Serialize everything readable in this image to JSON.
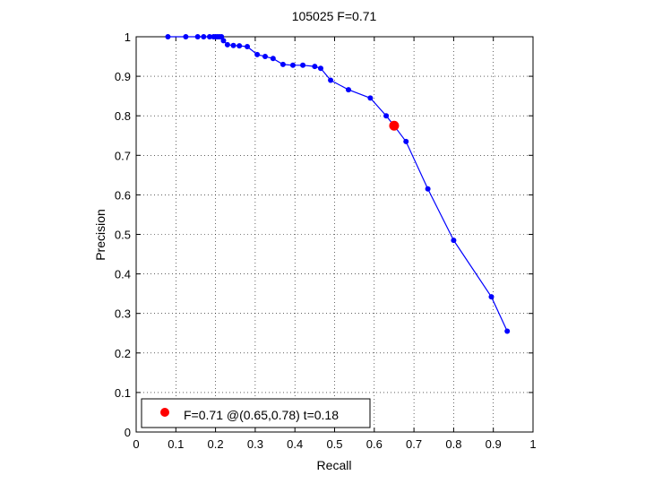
{
  "chart_data": {
    "type": "line",
    "title": "105025 F=0.71",
    "xlabel": "Recall",
    "ylabel": "Precision",
    "xlim": [
      0,
      1
    ],
    "ylim": [
      0,
      1
    ],
    "xticks": [
      0,
      0.1,
      0.2,
      0.3,
      0.4,
      0.5,
      0.6,
      0.7,
      0.8,
      0.9,
      1
    ],
    "yticks": [
      0,
      0.1,
      0.2,
      0.3,
      0.4,
      0.5,
      0.6,
      0.7,
      0.8,
      0.9,
      1
    ],
    "xtick_labels": [
      "0",
      "0.1",
      "0.2",
      "0.3",
      "0.4",
      "0.5",
      "0.6",
      "0.7",
      "0.8",
      "0.9",
      "1"
    ],
    "ytick_labels": [
      "0",
      "0.1",
      "0.2",
      "0.3",
      "0.4",
      "0.5",
      "0.6",
      "0.7",
      "0.8",
      "0.9",
      "1"
    ],
    "grid": true,
    "legend_position": "bottom-left",
    "series": [
      {
        "color": "#0000ff",
        "marker": "dot",
        "x": [
          0.08,
          0.125,
          0.155,
          0.17,
          0.185,
          0.195,
          0.2,
          0.205,
          0.21,
          0.215,
          0.22,
          0.23,
          0.245,
          0.26,
          0.28,
          0.305,
          0.325,
          0.345,
          0.37,
          0.395,
          0.42,
          0.45,
          0.465,
          0.49,
          0.535,
          0.59,
          0.63,
          0.65,
          0.68,
          0.735,
          0.8,
          0.895,
          0.935
        ],
        "y": [
          1.0,
          1.0,
          1.0,
          1.0,
          1.0,
          1.0,
          1.0,
          1.0,
          1.0,
          1.0,
          0.99,
          0.98,
          0.978,
          0.977,
          0.975,
          0.955,
          0.95,
          0.945,
          0.93,
          0.928,
          0.928,
          0.925,
          0.92,
          0.89,
          0.866,
          0.845,
          0.8,
          0.775,
          0.735,
          0.615,
          0.485,
          0.342,
          0.255
        ]
      }
    ],
    "best_point": {
      "x": 0.65,
      "y": 0.775,
      "color": "#ff0000"
    },
    "legend": {
      "text": "F=0.71 @(0.65,0.78) t=0.18",
      "marker_color": "#ff0000"
    }
  }
}
